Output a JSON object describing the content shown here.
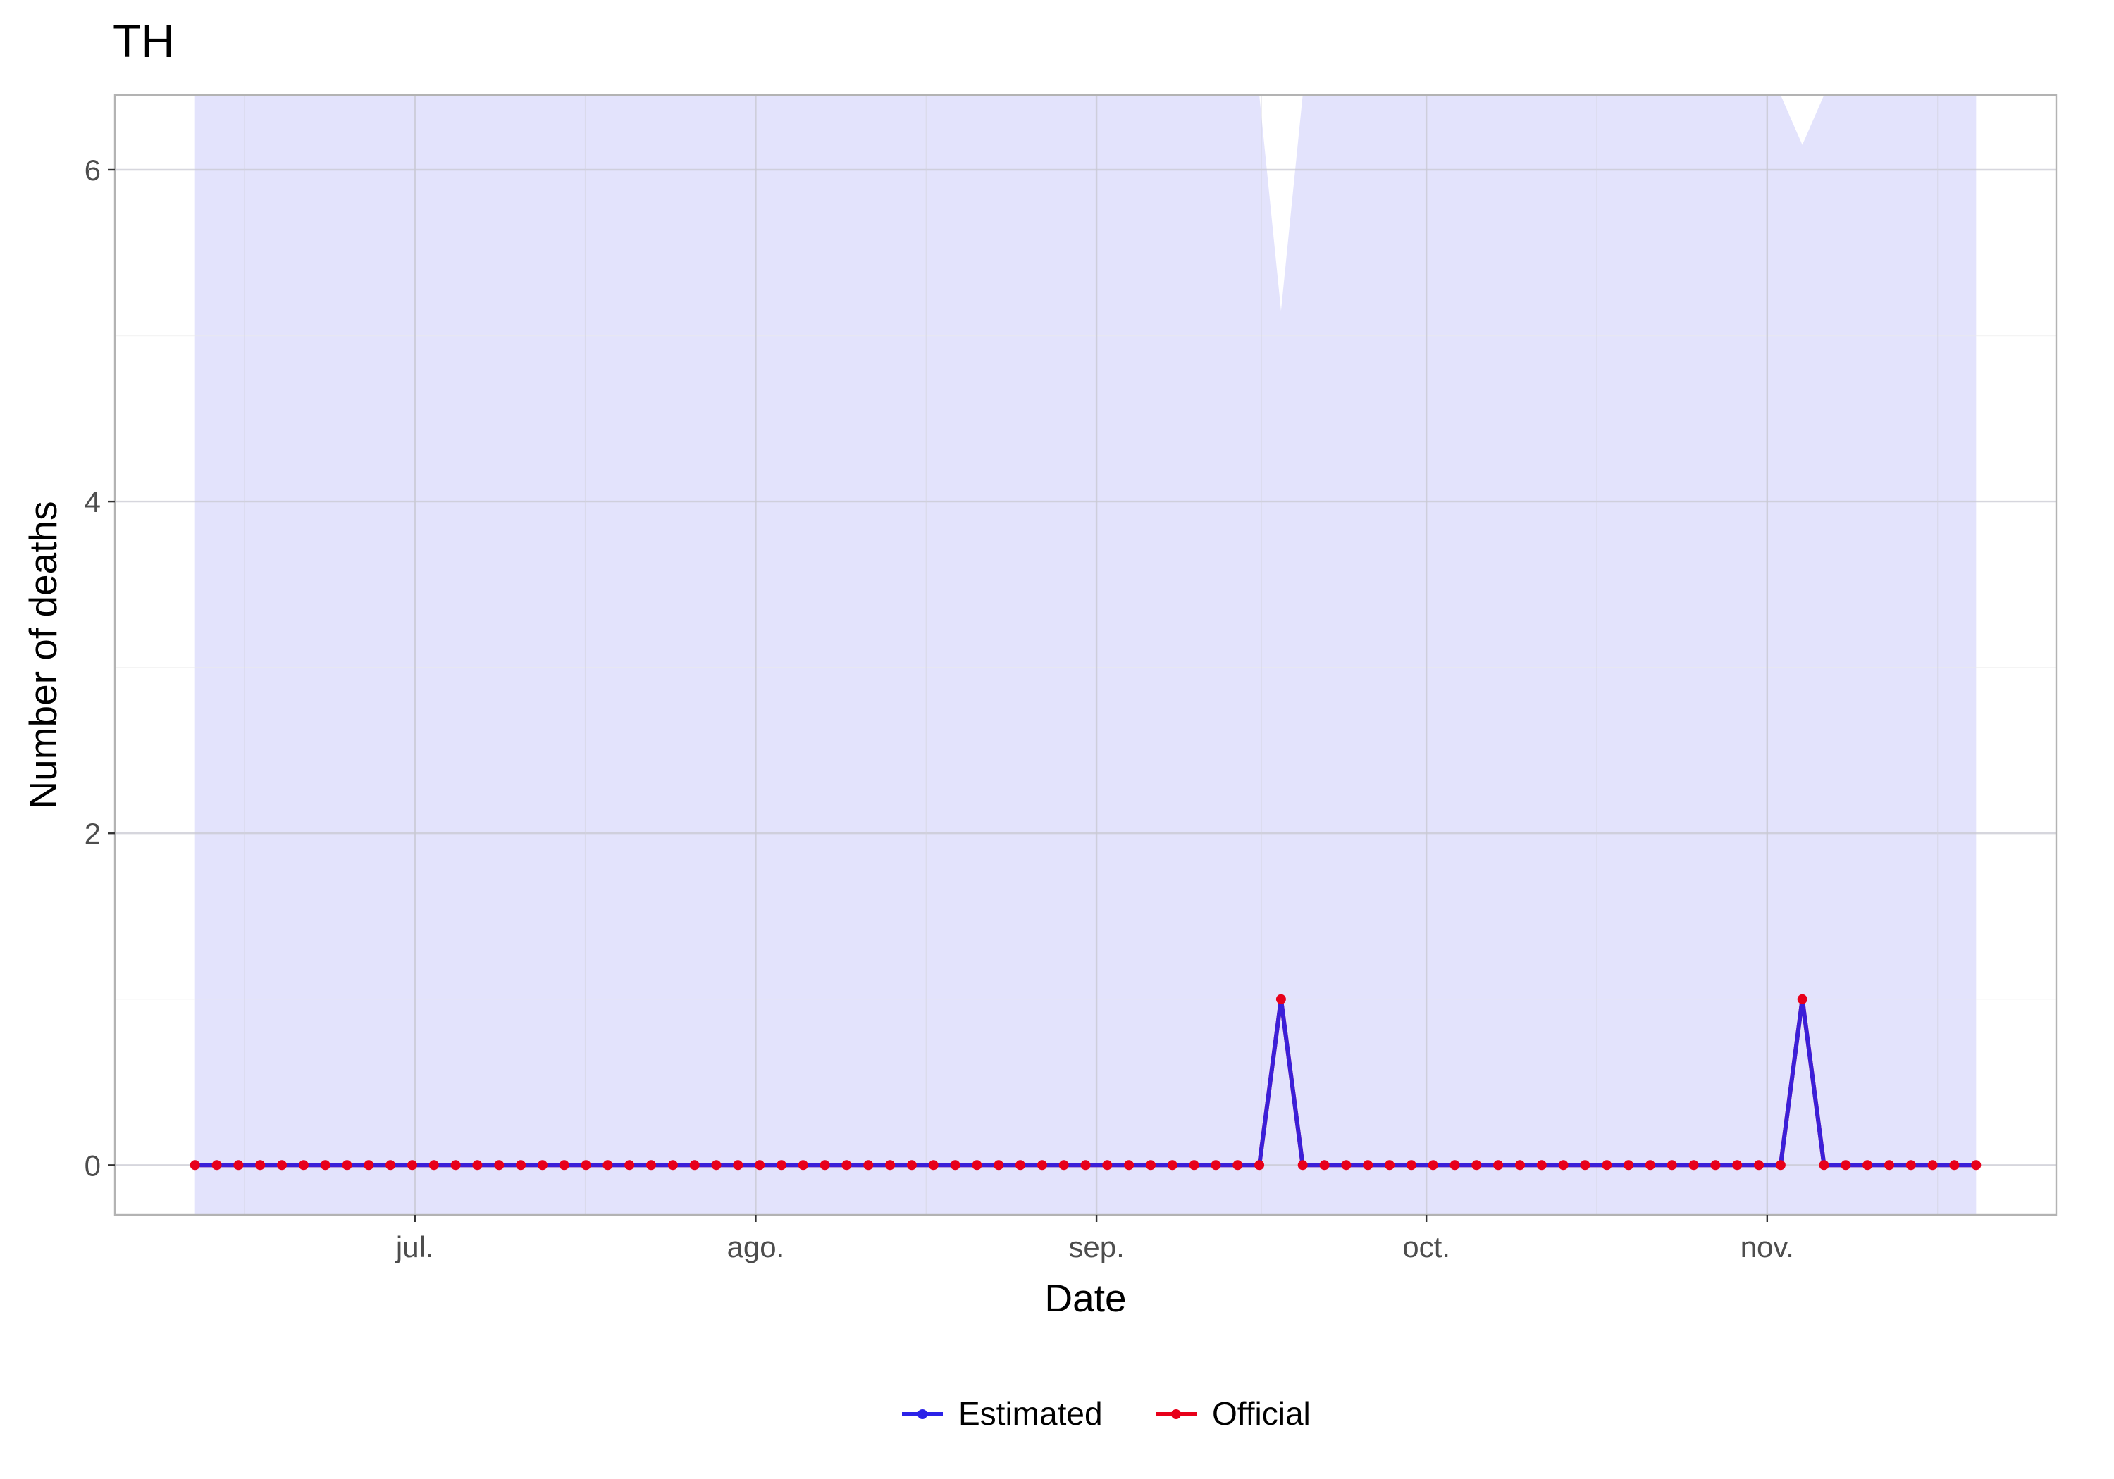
{
  "chart_data": {
    "type": "line",
    "title": "TH",
    "xlabel": "Date",
    "ylabel": "Number of deaths",
    "x_start": "2023-06-11",
    "x_end": "2023-11-20",
    "x_tick_labels": [
      "jul.",
      "ago.",
      "sep.",
      "oct.",
      "nov."
    ],
    "x_tick_dates": [
      "2023-07-01",
      "2023-08-01",
      "2023-09-01",
      "2023-10-01",
      "2023-11-01"
    ],
    "ylim": [
      -0.3,
      6.45
    ],
    "y_ticks": [
      0,
      2,
      4,
      6
    ],
    "grid": true,
    "legend_position": "bottom",
    "colors": {
      "estimated": "#2b22e8",
      "official": "#e8001a",
      "band": "#e3e3fc"
    },
    "series": [
      {
        "name": "Estimated",
        "values": [
          0,
          0,
          0,
          0,
          0,
          0,
          0,
          0,
          0,
          0,
          0,
          0,
          0,
          0,
          0,
          0,
          0,
          0,
          0,
          0,
          0,
          0,
          0,
          0,
          0,
          0,
          0,
          0,
          0,
          0,
          0,
          0,
          0,
          0,
          0,
          0,
          0,
          0,
          0,
          0,
          0,
          0,
          0,
          0,
          0,
          0,
          0,
          0,
          0,
          0,
          1,
          0,
          0,
          0,
          0,
          0,
          0,
          0,
          0,
          0,
          0,
          0,
          0,
          0,
          0,
          0,
          0,
          0,
          0,
          0,
          0,
          0,
          0,
          0,
          1,
          0,
          0,
          0,
          0,
          0,
          0,
          0,
          0
        ]
      },
      {
        "name": "Official",
        "values": [
          0,
          0,
          0,
          0,
          0,
          0,
          0,
          0,
          0,
          0,
          0,
          0,
          0,
          0,
          0,
          0,
          0,
          0,
          0,
          0,
          0,
          0,
          0,
          0,
          0,
          0,
          0,
          0,
          0,
          0,
          0,
          0,
          0,
          0,
          0,
          0,
          0,
          0,
          0,
          0,
          0,
          0,
          0,
          0,
          0,
          0,
          0,
          0,
          0,
          0,
          1,
          0,
          0,
          0,
          0,
          0,
          0,
          0,
          0,
          0,
          0,
          0,
          0,
          0,
          0,
          0,
          0,
          0,
          0,
          0,
          0,
          0,
          0,
          0,
          1,
          0,
          0,
          0,
          0,
          0,
          0,
          0,
          0
        ]
      }
    ],
    "band": {
      "upper": [
        6.45,
        6.45,
        6.45,
        6.45,
        6.45,
        6.45,
        6.45,
        6.45,
        6.45,
        6.45,
        6.45,
        6.45,
        6.45,
        6.45,
        6.45,
        6.45,
        6.45,
        6.45,
        6.45,
        6.45,
        6.45,
        6.45,
        6.45,
        6.45,
        6.45,
        6.45,
        6.45,
        6.45,
        6.45,
        6.45,
        6.45,
        6.45,
        6.45,
        6.45,
        6.45,
        6.45,
        6.45,
        6.45,
        6.45,
        6.45,
        6.45,
        6.45,
        6.45,
        6.45,
        6.45,
        6.45,
        6.45,
        6.45,
        6.45,
        6.45,
        5.15,
        6.45,
        6.45,
        6.45,
        6.45,
        6.45,
        6.45,
        6.45,
        6.45,
        6.45,
        6.45,
        6.45,
        6.45,
        6.45,
        6.45,
        6.45,
        6.45,
        6.45,
        6.45,
        6.45,
        6.45,
        6.45,
        6.45,
        6.45,
        6.15,
        6.45,
        6.45,
        6.45,
        6.45,
        6.45,
        6.45,
        6.45,
        6.45
      ],
      "lower": [
        -0.3,
        -0.3,
        -0.3,
        -0.3,
        -0.3,
        -0.3,
        -0.3,
        -0.3,
        -0.3,
        -0.3,
        -0.3,
        -0.3,
        -0.3,
        -0.3,
        -0.3,
        -0.3,
        -0.3,
        -0.3,
        -0.3,
        -0.3,
        -0.3,
        -0.3,
        -0.3,
        -0.3,
        -0.3,
        -0.3,
        -0.3,
        -0.3,
        -0.3,
        -0.3,
        -0.3,
        -0.3,
        -0.3,
        -0.3,
        -0.3,
        -0.3,
        -0.3,
        -0.3,
        -0.3,
        -0.3,
        -0.3,
        -0.3,
        -0.3,
        -0.3,
        -0.3,
        -0.3,
        -0.3,
        -0.3,
        -0.3,
        -0.3,
        -0.3,
        -0.3,
        -0.3,
        -0.3,
        -0.3,
        -0.3,
        -0.3,
        -0.3,
        -0.3,
        -0.3,
        -0.3,
        -0.3,
        -0.3,
        -0.3,
        -0.3,
        -0.3,
        -0.3,
        -0.3,
        -0.3,
        -0.3,
        -0.3,
        -0.3,
        -0.3,
        -0.3,
        -0.3,
        -0.3,
        -0.3,
        -0.3,
        -0.3,
        -0.3,
        -0.3,
        -0.3,
        -0.3
      ]
    }
  }
}
